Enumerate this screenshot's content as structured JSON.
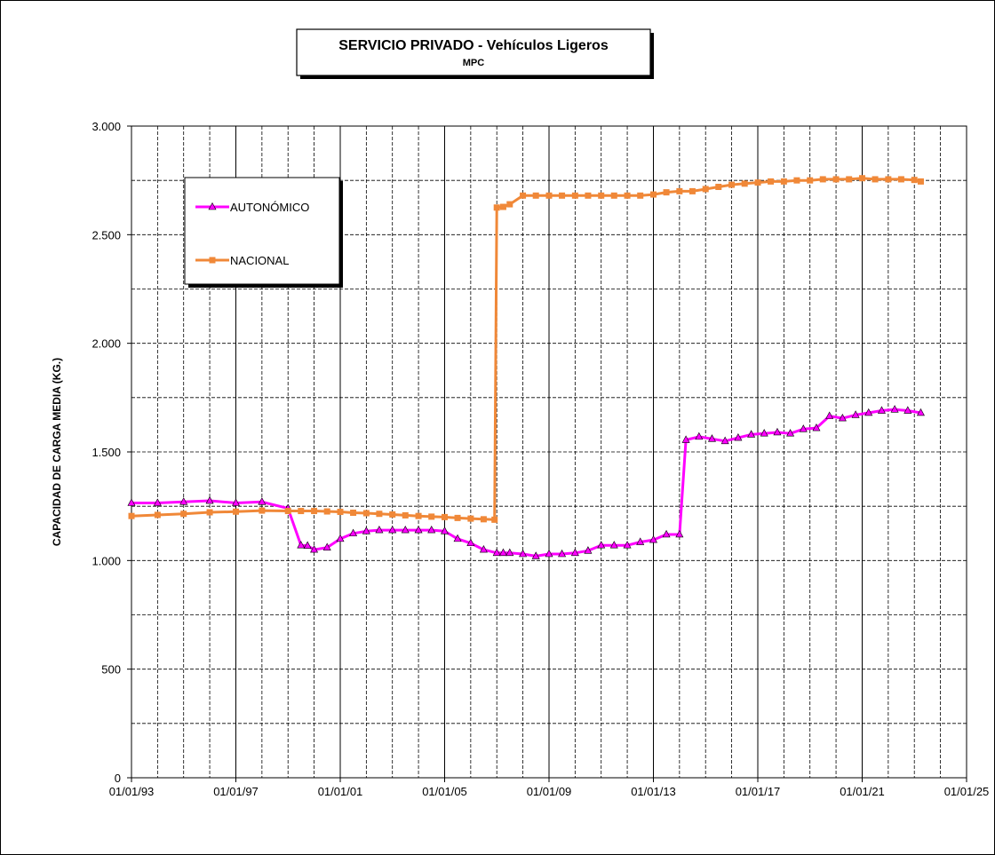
{
  "chart_data": {
    "type": "line",
    "title": "SERVICIO PRIVADO - Vehículos Ligeros",
    "subtitle": "MPC",
    "xlabel": "",
    "ylabel": "CAPACIDAD  DE CARGA  MEDIA  (KG.)",
    "ylim": [
      0,
      3000
    ],
    "yticks": [
      0,
      500,
      1000,
      1500,
      2000,
      2500,
      3000
    ],
    "ytick_labels": [
      "0",
      "500",
      "1.000",
      "1.500",
      "2.000",
      "2.500",
      "3.000"
    ],
    "xlim": [
      "1993-01-01",
      "2025-01-01"
    ],
    "xticks": [
      "1993-01-01",
      "1997-01-01",
      "2001-01-01",
      "2005-01-01",
      "2009-01-01",
      "2013-01-01",
      "2017-01-01",
      "2021-01-01",
      "2025-01-01"
    ],
    "xtick_labels": [
      "01/01/93",
      "01/01/97",
      "01/01/01",
      "01/01/05",
      "01/01/09",
      "01/01/13",
      "01/01/17",
      "01/01/21",
      "01/01/25"
    ],
    "grid": true,
    "legend_position": "top-left",
    "series": [
      {
        "name": "AUTONÓMICO",
        "color": "#ff00ff",
        "marker": "triangle",
        "points": [
          [
            "1993-01-01",
            1265
          ],
          [
            "1994-01-01",
            1265
          ],
          [
            "1995-01-01",
            1270
          ],
          [
            "1996-01-01",
            1275
          ],
          [
            "1997-01-01",
            1265
          ],
          [
            "1998-01-01",
            1270
          ],
          [
            "1999-01-01",
            1240
          ],
          [
            "1999-07-01",
            1070
          ],
          [
            "1999-10-01",
            1068
          ],
          [
            "2000-01-01",
            1050
          ],
          [
            "2000-07-01",
            1060
          ],
          [
            "2001-01-01",
            1100
          ],
          [
            "2001-07-01",
            1125
          ],
          [
            "2002-01-01",
            1135
          ],
          [
            "2002-07-01",
            1140
          ],
          [
            "2003-01-01",
            1140
          ],
          [
            "2003-07-01",
            1140
          ],
          [
            "2004-01-01",
            1140
          ],
          [
            "2004-07-01",
            1140
          ],
          [
            "2005-01-01",
            1135
          ],
          [
            "2005-07-01",
            1100
          ],
          [
            "2006-01-01",
            1080
          ],
          [
            "2006-07-01",
            1050
          ],
          [
            "2007-01-01",
            1035
          ],
          [
            "2007-04-01",
            1035
          ],
          [
            "2007-07-01",
            1035
          ],
          [
            "2008-01-01",
            1030
          ],
          [
            "2008-07-01",
            1020
          ],
          [
            "2009-01-01",
            1030
          ],
          [
            "2009-07-01",
            1030
          ],
          [
            "2010-01-01",
            1035
          ],
          [
            "2010-07-01",
            1045
          ],
          [
            "2011-01-01",
            1070
          ],
          [
            "2011-07-01",
            1070
          ],
          [
            "2012-01-01",
            1070
          ],
          [
            "2012-07-01",
            1085
          ],
          [
            "2013-01-01",
            1095
          ],
          [
            "2013-07-01",
            1120
          ],
          [
            "2014-01-01",
            1120
          ],
          [
            "2014-04-01",
            1555
          ],
          [
            "2014-10-01",
            1570
          ],
          [
            "2015-04-01",
            1560
          ],
          [
            "2015-10-01",
            1550
          ],
          [
            "2016-04-01",
            1565
          ],
          [
            "2016-10-01",
            1580
          ],
          [
            "2017-04-01",
            1585
          ],
          [
            "2017-10-01",
            1590
          ],
          [
            "2018-04-01",
            1585
          ],
          [
            "2018-10-01",
            1605
          ],
          [
            "2019-04-01",
            1610
          ],
          [
            "2019-10-01",
            1665
          ],
          [
            "2020-04-01",
            1655
          ],
          [
            "2020-10-01",
            1670
          ],
          [
            "2021-04-01",
            1680
          ],
          [
            "2021-10-01",
            1690
          ],
          [
            "2022-04-01",
            1695
          ],
          [
            "2022-10-01",
            1690
          ],
          [
            "2023-04-01",
            1680
          ]
        ]
      },
      {
        "name": "NACIONAL",
        "color": "#f08838",
        "marker": "square",
        "points": [
          [
            "1993-01-01",
            1205
          ],
          [
            "1994-01-01",
            1210
          ],
          [
            "1995-01-01",
            1215
          ],
          [
            "1996-01-01",
            1222
          ],
          [
            "1997-01-01",
            1225
          ],
          [
            "1998-01-01",
            1230
          ],
          [
            "1999-01-01",
            1228
          ],
          [
            "1999-07-01",
            1228
          ],
          [
            "2000-01-01",
            1228
          ],
          [
            "2000-07-01",
            1226
          ],
          [
            "2001-01-01",
            1224
          ],
          [
            "2001-07-01",
            1220
          ],
          [
            "2002-01-01",
            1218
          ],
          [
            "2002-07-01",
            1215
          ],
          [
            "2003-01-01",
            1212
          ],
          [
            "2003-07-01",
            1208
          ],
          [
            "2004-01-01",
            1205
          ],
          [
            "2004-07-01",
            1202
          ],
          [
            "2005-01-01",
            1200
          ],
          [
            "2005-07-01",
            1196
          ],
          [
            "2006-01-01",
            1193
          ],
          [
            "2006-07-01",
            1190
          ],
          [
            "2006-12-01",
            1188
          ],
          [
            "2007-01-01",
            2625
          ],
          [
            "2007-04-01",
            2628
          ],
          [
            "2007-07-01",
            2640
          ],
          [
            "2008-01-01",
            2680
          ],
          [
            "2008-07-01",
            2680
          ],
          [
            "2009-01-01",
            2680
          ],
          [
            "2009-07-01",
            2680
          ],
          [
            "2010-01-01",
            2680
          ],
          [
            "2010-07-01",
            2680
          ],
          [
            "2011-01-01",
            2680
          ],
          [
            "2011-07-01",
            2680
          ],
          [
            "2012-01-01",
            2680
          ],
          [
            "2012-07-01",
            2680
          ],
          [
            "2013-01-01",
            2685
          ],
          [
            "2013-07-01",
            2695
          ],
          [
            "2014-01-01",
            2700
          ],
          [
            "2014-07-01",
            2700
          ],
          [
            "2015-01-01",
            2710
          ],
          [
            "2015-07-01",
            2720
          ],
          [
            "2016-01-01",
            2730
          ],
          [
            "2016-07-01",
            2735
          ],
          [
            "2017-01-01",
            2740
          ],
          [
            "2017-07-01",
            2745
          ],
          [
            "2018-01-01",
            2745
          ],
          [
            "2018-07-01",
            2750
          ],
          [
            "2019-01-01",
            2750
          ],
          [
            "2019-07-01",
            2755
          ],
          [
            "2020-01-01",
            2755
          ],
          [
            "2020-07-01",
            2755
          ],
          [
            "2021-01-01",
            2760
          ],
          [
            "2021-07-01",
            2755
          ],
          [
            "2022-01-01",
            2755
          ],
          [
            "2022-07-01",
            2755
          ],
          [
            "2023-01-01",
            2752
          ],
          [
            "2023-04-01",
            2745
          ]
        ]
      }
    ]
  }
}
